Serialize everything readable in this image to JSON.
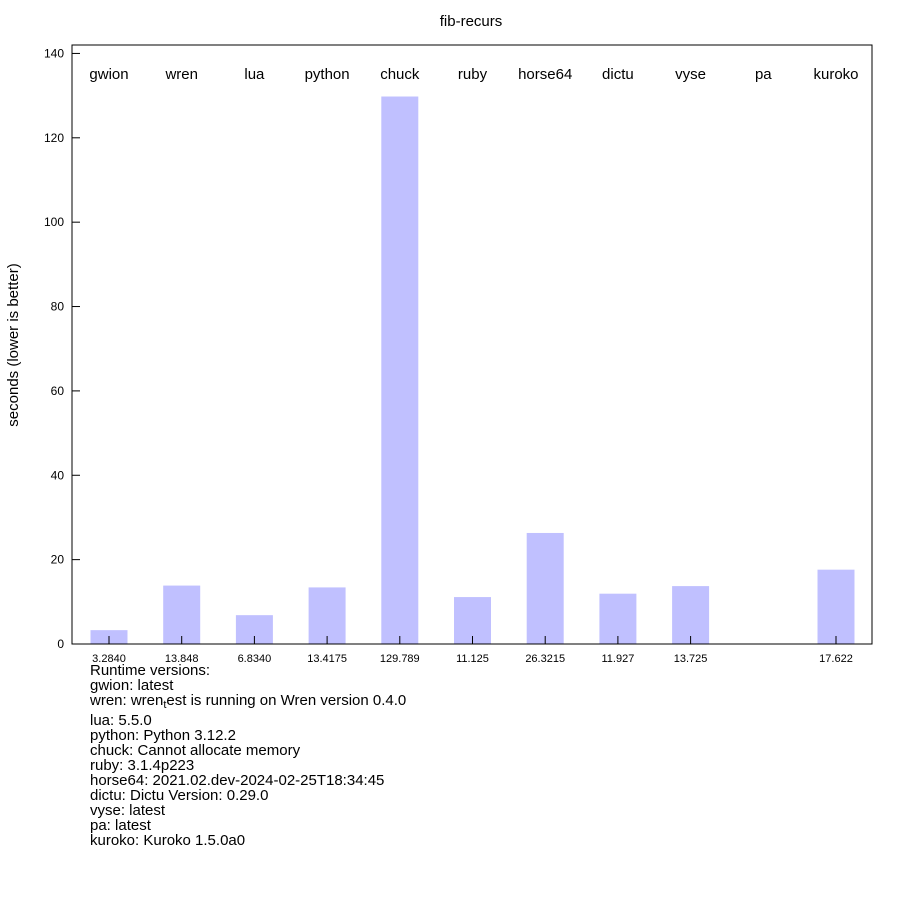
{
  "chart_data": {
    "type": "bar",
    "title": "fib-recurs",
    "xlabel": "",
    "ylabel": "seconds (lower is better)",
    "ylim": [
      0,
      142
    ],
    "yticks": [
      0,
      20,
      40,
      60,
      80,
      100,
      120,
      140
    ],
    "grid": false,
    "bar_color": "#c0c0ff",
    "categories": [
      "gwion",
      "wren",
      "lua",
      "python",
      "chuck",
      "ruby",
      "horse64",
      "dictu",
      "vyse",
      "pa",
      "kuroko"
    ],
    "values": [
      3.284,
      13.848,
      6.834,
      13.4175,
      129.789,
      11.125,
      26.3215,
      11.927,
      13.725,
      null,
      17.622
    ],
    "value_labels": [
      "3.2840",
      "13.848",
      "6.8340",
      "13.4175",
      "129.789",
      "11.125",
      "26.3215",
      "11.927",
      "13.725",
      "",
      "17.622"
    ]
  },
  "runtime_versions": {
    "heading": "Runtime versions:",
    "lines": [
      "gwion: latest",
      "wren: wren",
      "lua: 5.5.0",
      "python: Python 3.12.2",
      "chuck: Cannot allocate memory",
      "ruby: 3.1.4p223",
      "horse64: 2021.02.dev-2024-02-25T18:34:45",
      "dictu: Dictu Version: 0.29.0",
      "vyse: latest",
      "pa: latest",
      "kuroko: Kuroko 1.5.0a0"
    ],
    "wren_sub": "t",
    "wren_rest": "est is running on Wren version 0.4.0"
  }
}
